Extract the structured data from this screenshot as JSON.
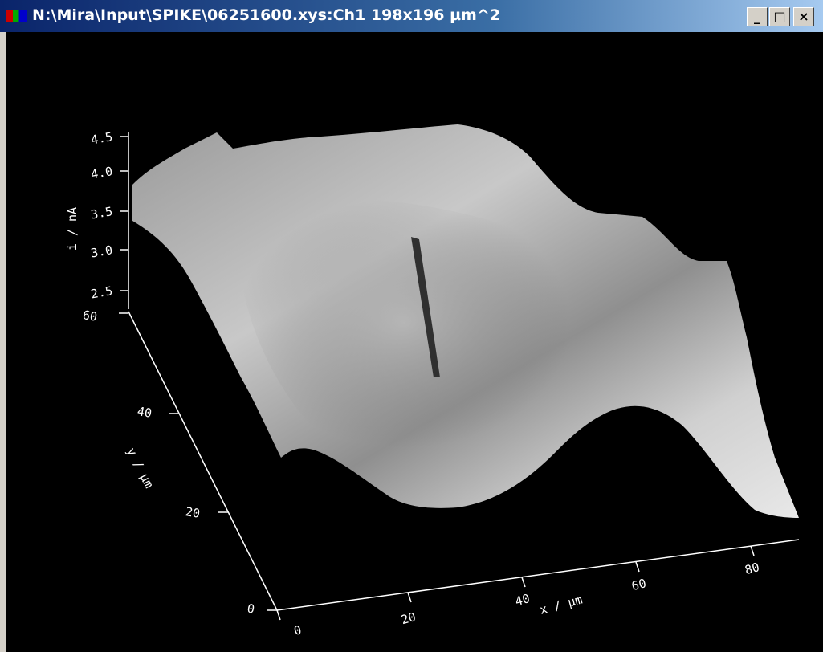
{
  "window": {
    "title": "N:\\Mira\\Input\\SPIKE\\06251600.xys:Ch1 198x196 µm^2"
  },
  "plot": {
    "z_axis": {
      "label": "i / nA",
      "ticks": [
        "4.5",
        "4.0",
        "3.5",
        "3.0",
        "2.5"
      ]
    },
    "y_axis": {
      "label": "y / µm",
      "ticks": [
        "60",
        "40",
        "20",
        "0"
      ]
    },
    "x_axis": {
      "label": "x / µm",
      "ticks": [
        "0",
        "20",
        "40",
        "60",
        "80"
      ]
    }
  }
}
